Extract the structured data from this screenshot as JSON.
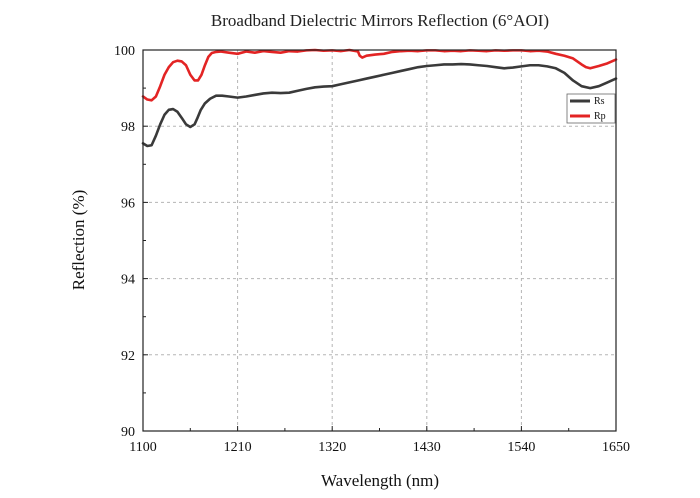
{
  "chart_data": {
    "type": "line",
    "title": "Broadband Dielectric Mirrors Reflection (6°AOI)",
    "xlabel": "Wavelength (nm)",
    "ylabel": "Reflection (%)",
    "xlim": [
      1100,
      1650
    ],
    "ylim": [
      90,
      100
    ],
    "xticks": [
      1100,
      1210,
      1320,
      1430,
      1540,
      1650
    ],
    "yticks": [
      90,
      92,
      94,
      96,
      98,
      100
    ],
    "grid": true,
    "legend_position": "top-right",
    "series": [
      {
        "name": "Rs",
        "color": "#3a3a3a",
        "x": [
          1100,
          1105,
          1110,
          1115,
          1120,
          1125,
          1130,
          1135,
          1140,
          1145,
          1150,
          1155,
          1160,
          1163,
          1167,
          1172,
          1178,
          1185,
          1192,
          1200,
          1210,
          1220,
          1230,
          1240,
          1250,
          1260,
          1270,
          1280,
          1290,
          1300,
          1310,
          1320,
          1330,
          1340,
          1350,
          1360,
          1370,
          1380,
          1390,
          1400,
          1410,
          1420,
          1430,
          1440,
          1450,
          1460,
          1470,
          1480,
          1490,
          1500,
          1510,
          1520,
          1530,
          1540,
          1550,
          1560,
          1570,
          1580,
          1590,
          1600,
          1610,
          1620,
          1630,
          1640,
          1650
        ],
        "values": [
          97.55,
          97.48,
          97.5,
          97.75,
          98.05,
          98.3,
          98.43,
          98.45,
          98.38,
          98.22,
          98.05,
          97.98,
          98.05,
          98.2,
          98.42,
          98.6,
          98.72,
          98.8,
          98.8,
          98.78,
          98.75,
          98.78,
          98.82,
          98.86,
          98.88,
          98.87,
          98.88,
          98.93,
          98.98,
          99.02,
          99.04,
          99.05,
          99.1,
          99.15,
          99.2,
          99.25,
          99.3,
          99.35,
          99.4,
          99.45,
          99.5,
          99.55,
          99.58,
          99.6,
          99.62,
          99.62,
          99.63,
          99.62,
          99.6,
          99.58,
          99.55,
          99.52,
          99.54,
          99.57,
          99.6,
          99.6,
          99.57,
          99.52,
          99.4,
          99.2,
          99.05,
          99.0,
          99.05,
          99.15,
          99.25
        ]
      },
      {
        "name": "Rp",
        "color": "#e32424",
        "x": [
          1100,
          1105,
          1110,
          1115,
          1120,
          1125,
          1130,
          1135,
          1140,
          1145,
          1150,
          1155,
          1160,
          1164,
          1168,
          1172,
          1176,
          1180,
          1185,
          1190,
          1200,
          1210,
          1220,
          1230,
          1240,
          1250,
          1260,
          1270,
          1280,
          1290,
          1300,
          1310,
          1320,
          1330,
          1340,
          1350,
          1352,
          1355,
          1360,
          1370,
          1380,
          1390,
          1400,
          1410,
          1420,
          1430,
          1440,
          1450,
          1460,
          1470,
          1480,
          1490,
          1500,
          1510,
          1520,
          1530,
          1540,
          1550,
          1560,
          1570,
          1580,
          1590,
          1600,
          1605,
          1610,
          1615,
          1620,
          1630,
          1640,
          1650
        ],
        "values": [
          98.78,
          98.7,
          98.68,
          98.78,
          99.05,
          99.35,
          99.55,
          99.68,
          99.72,
          99.7,
          99.6,
          99.35,
          99.2,
          99.2,
          99.35,
          99.6,
          99.82,
          99.92,
          99.95,
          99.96,
          99.93,
          99.9,
          99.96,
          99.93,
          99.97,
          99.95,
          99.93,
          99.97,
          99.96,
          99.99,
          100.0,
          99.98,
          99.99,
          99.97,
          100.0,
          99.96,
          99.85,
          99.8,
          99.85,
          99.88,
          99.9,
          99.95,
          99.97,
          99.98,
          99.97,
          99.99,
          99.99,
          99.97,
          99.98,
          99.97,
          99.99,
          99.98,
          99.97,
          99.99,
          99.98,
          99.99,
          99.99,
          99.97,
          99.98,
          99.96,
          99.9,
          99.85,
          99.78,
          99.7,
          99.62,
          99.55,
          99.52,
          99.58,
          99.65,
          99.75
        ]
      }
    ]
  }
}
